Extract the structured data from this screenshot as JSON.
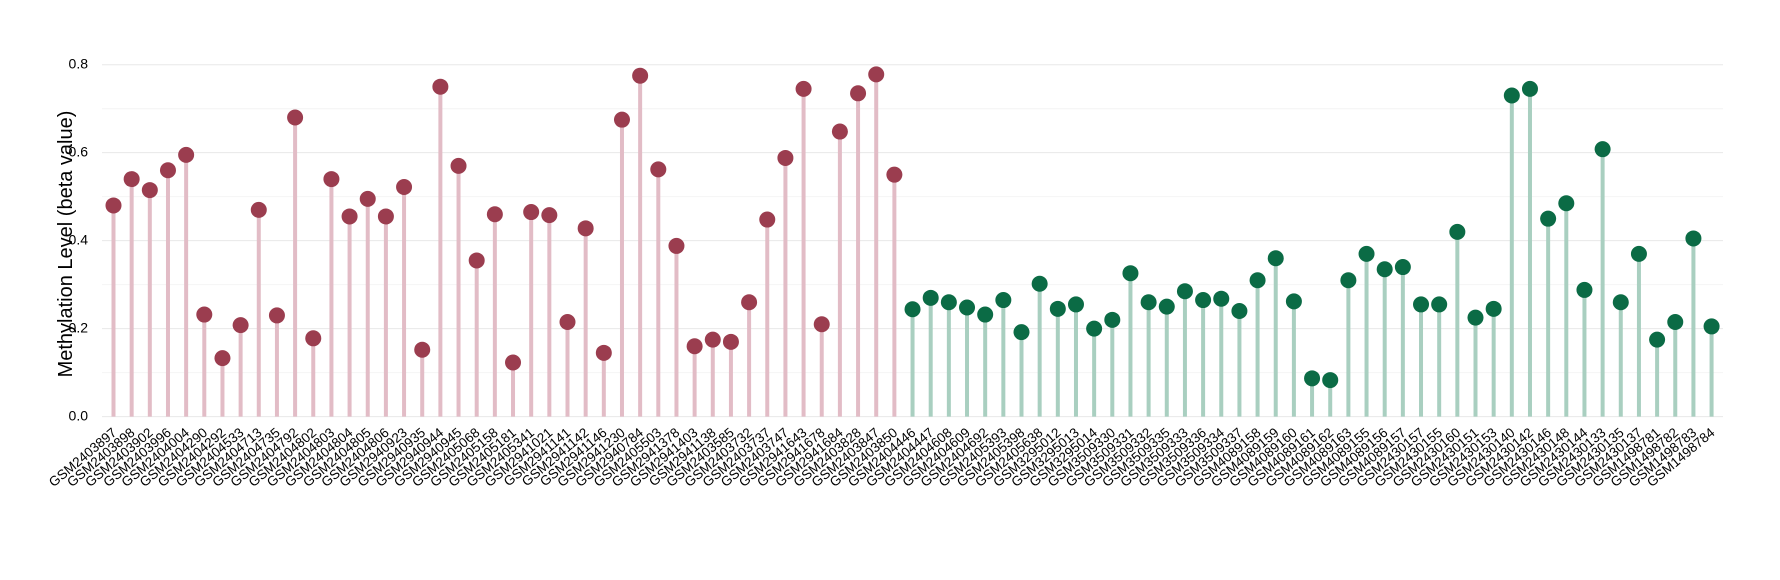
{
  "chart_data": {
    "type": "lollipop",
    "y_label": "Methylation Level (beta value)",
    "ylim": [
      0,
      0.8
    ],
    "yticks": [
      {
        "value": 0,
        "label": "0.0"
      },
      0.2,
      0.4,
      0.6,
      {
        "value": 0.8,
        "label": "0.8"
      }
    ],
    "minor_yticks": [
      0.1,
      0.3,
      0.5,
      0.7
    ],
    "grid": true,
    "groups": [
      {
        "color": "#9b3d4f",
        "stem_color": "#e2bcc6",
        "categories": [
          "GSM2403897",
          "GSM2403898",
          "GSM2403902",
          "GSM2403996",
          "GSM2404004",
          "GSM2404290",
          "GSM2404292",
          "GSM2404533",
          "GSM2404713",
          "GSM2404735",
          "GSM2404792",
          "GSM2404802",
          "GSM2404803",
          "GSM2404804",
          "GSM2404805",
          "GSM2404806",
          "GSM2940923",
          "GSM2940935",
          "GSM2940944",
          "GSM2940945",
          "GSM2405068",
          "GSM2405158",
          "GSM2405181",
          "GSM2405341",
          "GSM2941021",
          "GSM2941141",
          "GSM2941142",
          "GSM2941146",
          "GSM2941230",
          "GSM2940784",
          "GSM2405503",
          "GSM2941378",
          "GSM2941403",
          "GSM2941138",
          "GSM2403585",
          "GSM2403732",
          "GSM2403737",
          "GSM2403747",
          "GSM2941643",
          "GSM2941678",
          "GSM2941684",
          "GSM2403828",
          "GSM2403847",
          "GSM2403850"
        ],
        "values": [
          0.48,
          0.54,
          0.515,
          0.56,
          0.595,
          0.232,
          0.133,
          0.208,
          0.47,
          0.23,
          0.68,
          0.178,
          0.54,
          0.455,
          0.495,
          0.455,
          0.522,
          0.152,
          0.75,
          0.57,
          0.355,
          0.46,
          0.123,
          0.465,
          0.458,
          0.215,
          0.428,
          0.145,
          0.675,
          0.775,
          0.562,
          0.388,
          0.16,
          0.175,
          0.17,
          0.26,
          0.448,
          0.588,
          0.745,
          0.21,
          0.648,
          0.735,
          0.778,
          0.55
        ]
      },
      {
        "color": "#0b6b45",
        "stem_color": "#a9cfc0",
        "categories": [
          "GSM2404446",
          "GSM2404447",
          "GSM2404608",
          "GSM2404609",
          "GSM2404692",
          "GSM2405393",
          "GSM2405398",
          "GSM2405638",
          "GSM3295012",
          "GSM3295013",
          "GSM3295014",
          "GSM3509330",
          "GSM3509331",
          "GSM3509332",
          "GSM3509335",
          "GSM3509333",
          "GSM3509336",
          "GSM3509334",
          "GSM3509337",
          "GSM4089158",
          "GSM4089159",
          "GSM4089160",
          "GSM4089161",
          "GSM4089162",
          "GSM4089163",
          "GSM4089155",
          "GSM4089156",
          "GSM4089157",
          "GSM2430157",
          "GSM2430155",
          "GSM2430160",
          "GSM2430151",
          "GSM2430153",
          "GSM2430140",
          "GSM2430142",
          "GSM2430146",
          "GSM2430148",
          "GSM2430144",
          "GSM2430133",
          "GSM2430135",
          "GSM2430137",
          "GSM1498781",
          "GSM1498782",
          "GSM1498783",
          "GSM1498784"
        ],
        "values": [
          0.244,
          0.27,
          0.26,
          0.248,
          0.232,
          0.265,
          0.192,
          0.302,
          0.245,
          0.255,
          0.2,
          0.22,
          0.326,
          0.26,
          0.25,
          0.285,
          0.265,
          0.268,
          0.24,
          0.31,
          0.36,
          0.262,
          0.087,
          0.083,
          0.31,
          0.37,
          0.335,
          0.34,
          0.255,
          0.255,
          0.42,
          0.225,
          0.245,
          0.73,
          0.745,
          0.45,
          0.485,
          0.288,
          0.608,
          0.26,
          0.37,
          0.175,
          0.215,
          0.405,
          0.205
        ]
      }
    ]
  }
}
